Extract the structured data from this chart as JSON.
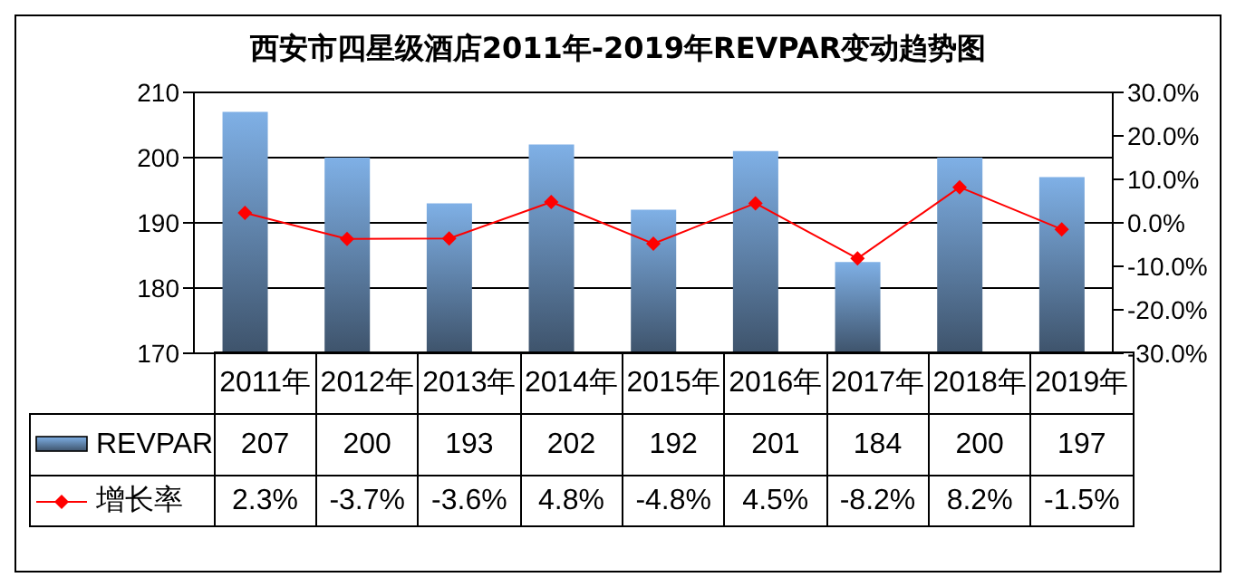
{
  "chart_data": {
    "type": "bar",
    "title": "西安市四星级酒店2011年-2019年REVPAR变动趋势图",
    "categories": [
      "2011年",
      "2012年",
      "2013年",
      "2014年",
      "2015年",
      "2016年",
      "2017年",
      "2018年",
      "2019年"
    ],
    "series": [
      {
        "name": "REVPAR",
        "color": "#7fb0e6",
        "values": [
          207,
          200,
          193,
          202,
          192,
          201,
          184,
          200,
          197
        ],
        "value_labels": [
          "207",
          "200",
          "193",
          "202",
          "192",
          "201",
          "184",
          "200",
          "197"
        ]
      },
      {
        "name": "增长率",
        "type": "line",
        "axis": "y2",
        "color": "#ff0000",
        "marker": "diamond",
        "values": [
          2.3,
          -3.7,
          -3.6,
          4.8,
          -4.8,
          4.5,
          -8.2,
          8.2,
          -1.5
        ],
        "value_labels": [
          "2.3%",
          "-3.7%",
          "-3.6%",
          "4.8%",
          "-4.8%",
          "4.5%",
          "-8.2%",
          "8.2%",
          "-1.5%"
        ]
      }
    ],
    "ylim": [
      170,
      210
    ],
    "yticks": [
      170,
      180,
      190,
      200,
      210
    ],
    "y2lim": [
      -30,
      30
    ],
    "y2ticks": [
      {
        "value": -30,
        "label": "-30.0%"
      },
      {
        "value": -20,
        "label": "-20.0%"
      },
      {
        "value": -10,
        "label": "-10.0%"
      },
      {
        "value": 0,
        "label": "0.0%"
      },
      {
        "value": 10,
        "label": "10.0%"
      },
      {
        "value": 20,
        "label": "20.0%"
      },
      {
        "value": 30,
        "label": "30.0%"
      }
    ],
    "grid": "y",
    "legend": "bottom left"
  }
}
